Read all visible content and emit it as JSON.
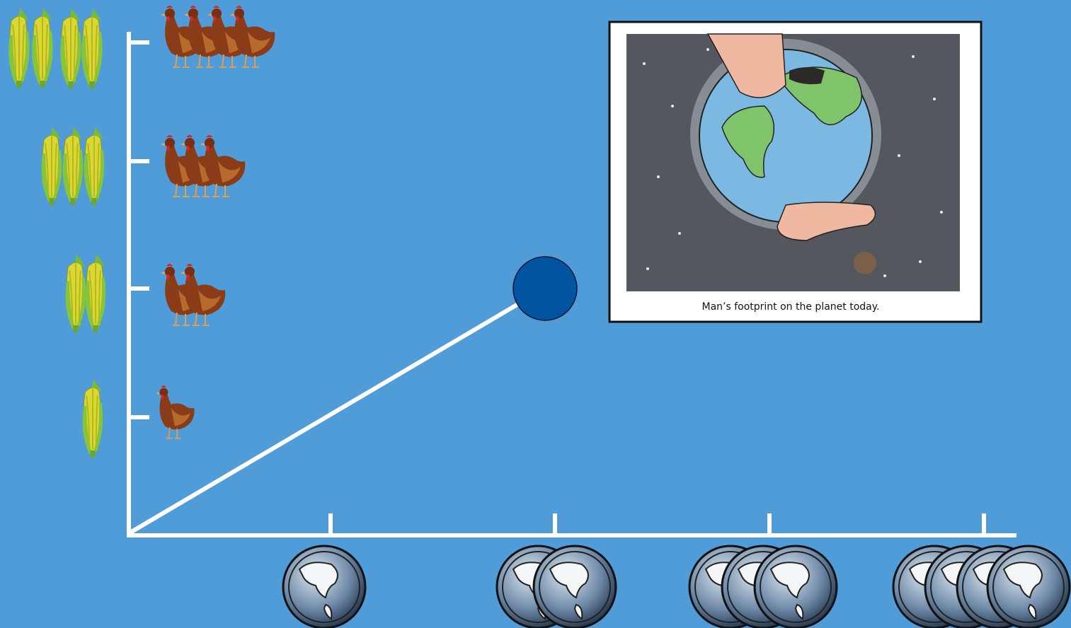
{
  "cartoon": {
    "caption": "Man’s footprint on the planet today."
  }
}
